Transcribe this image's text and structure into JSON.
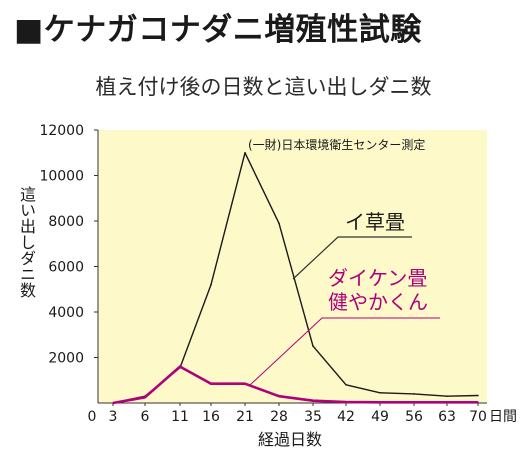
{
  "title": "■ケナガコナダニ増殖性試験",
  "subtitle": "植え付け後の日数と這い出しダニ数",
  "chart_data": {
    "type": "line",
    "xlabel": "経過日数",
    "x_unit": "日間",
    "ylabel": "這い出しダニ数",
    "x_origin_label": "0",
    "categories": [
      "3",
      "6",
      "11",
      "16",
      "21",
      "28",
      "35",
      "42",
      "49",
      "56",
      "63",
      "70"
    ],
    "ylim": [
      0,
      12000
    ],
    "yticks": [
      "2000",
      "4000",
      "6000",
      "8000",
      "10000",
      "12000"
    ],
    "source_note": "(一財)日本環境衛生センター測定",
    "grid": false,
    "series": [
      {
        "name": "イ草畳",
        "color": "#1a1a1a",
        "values": [
          0,
          300,
          1550,
          5200,
          11000,
          7900,
          2500,
          800,
          450,
          400,
          300,
          330
        ]
      },
      {
        "name_lines": [
          "ダイケン畳",
          "健やかくん"
        ],
        "color": "#b0007a",
        "values": [
          0,
          250,
          1600,
          850,
          850,
          300,
          100,
          40,
          30,
          30,
          30,
          30
        ]
      }
    ],
    "background": "#fdf9c9"
  }
}
